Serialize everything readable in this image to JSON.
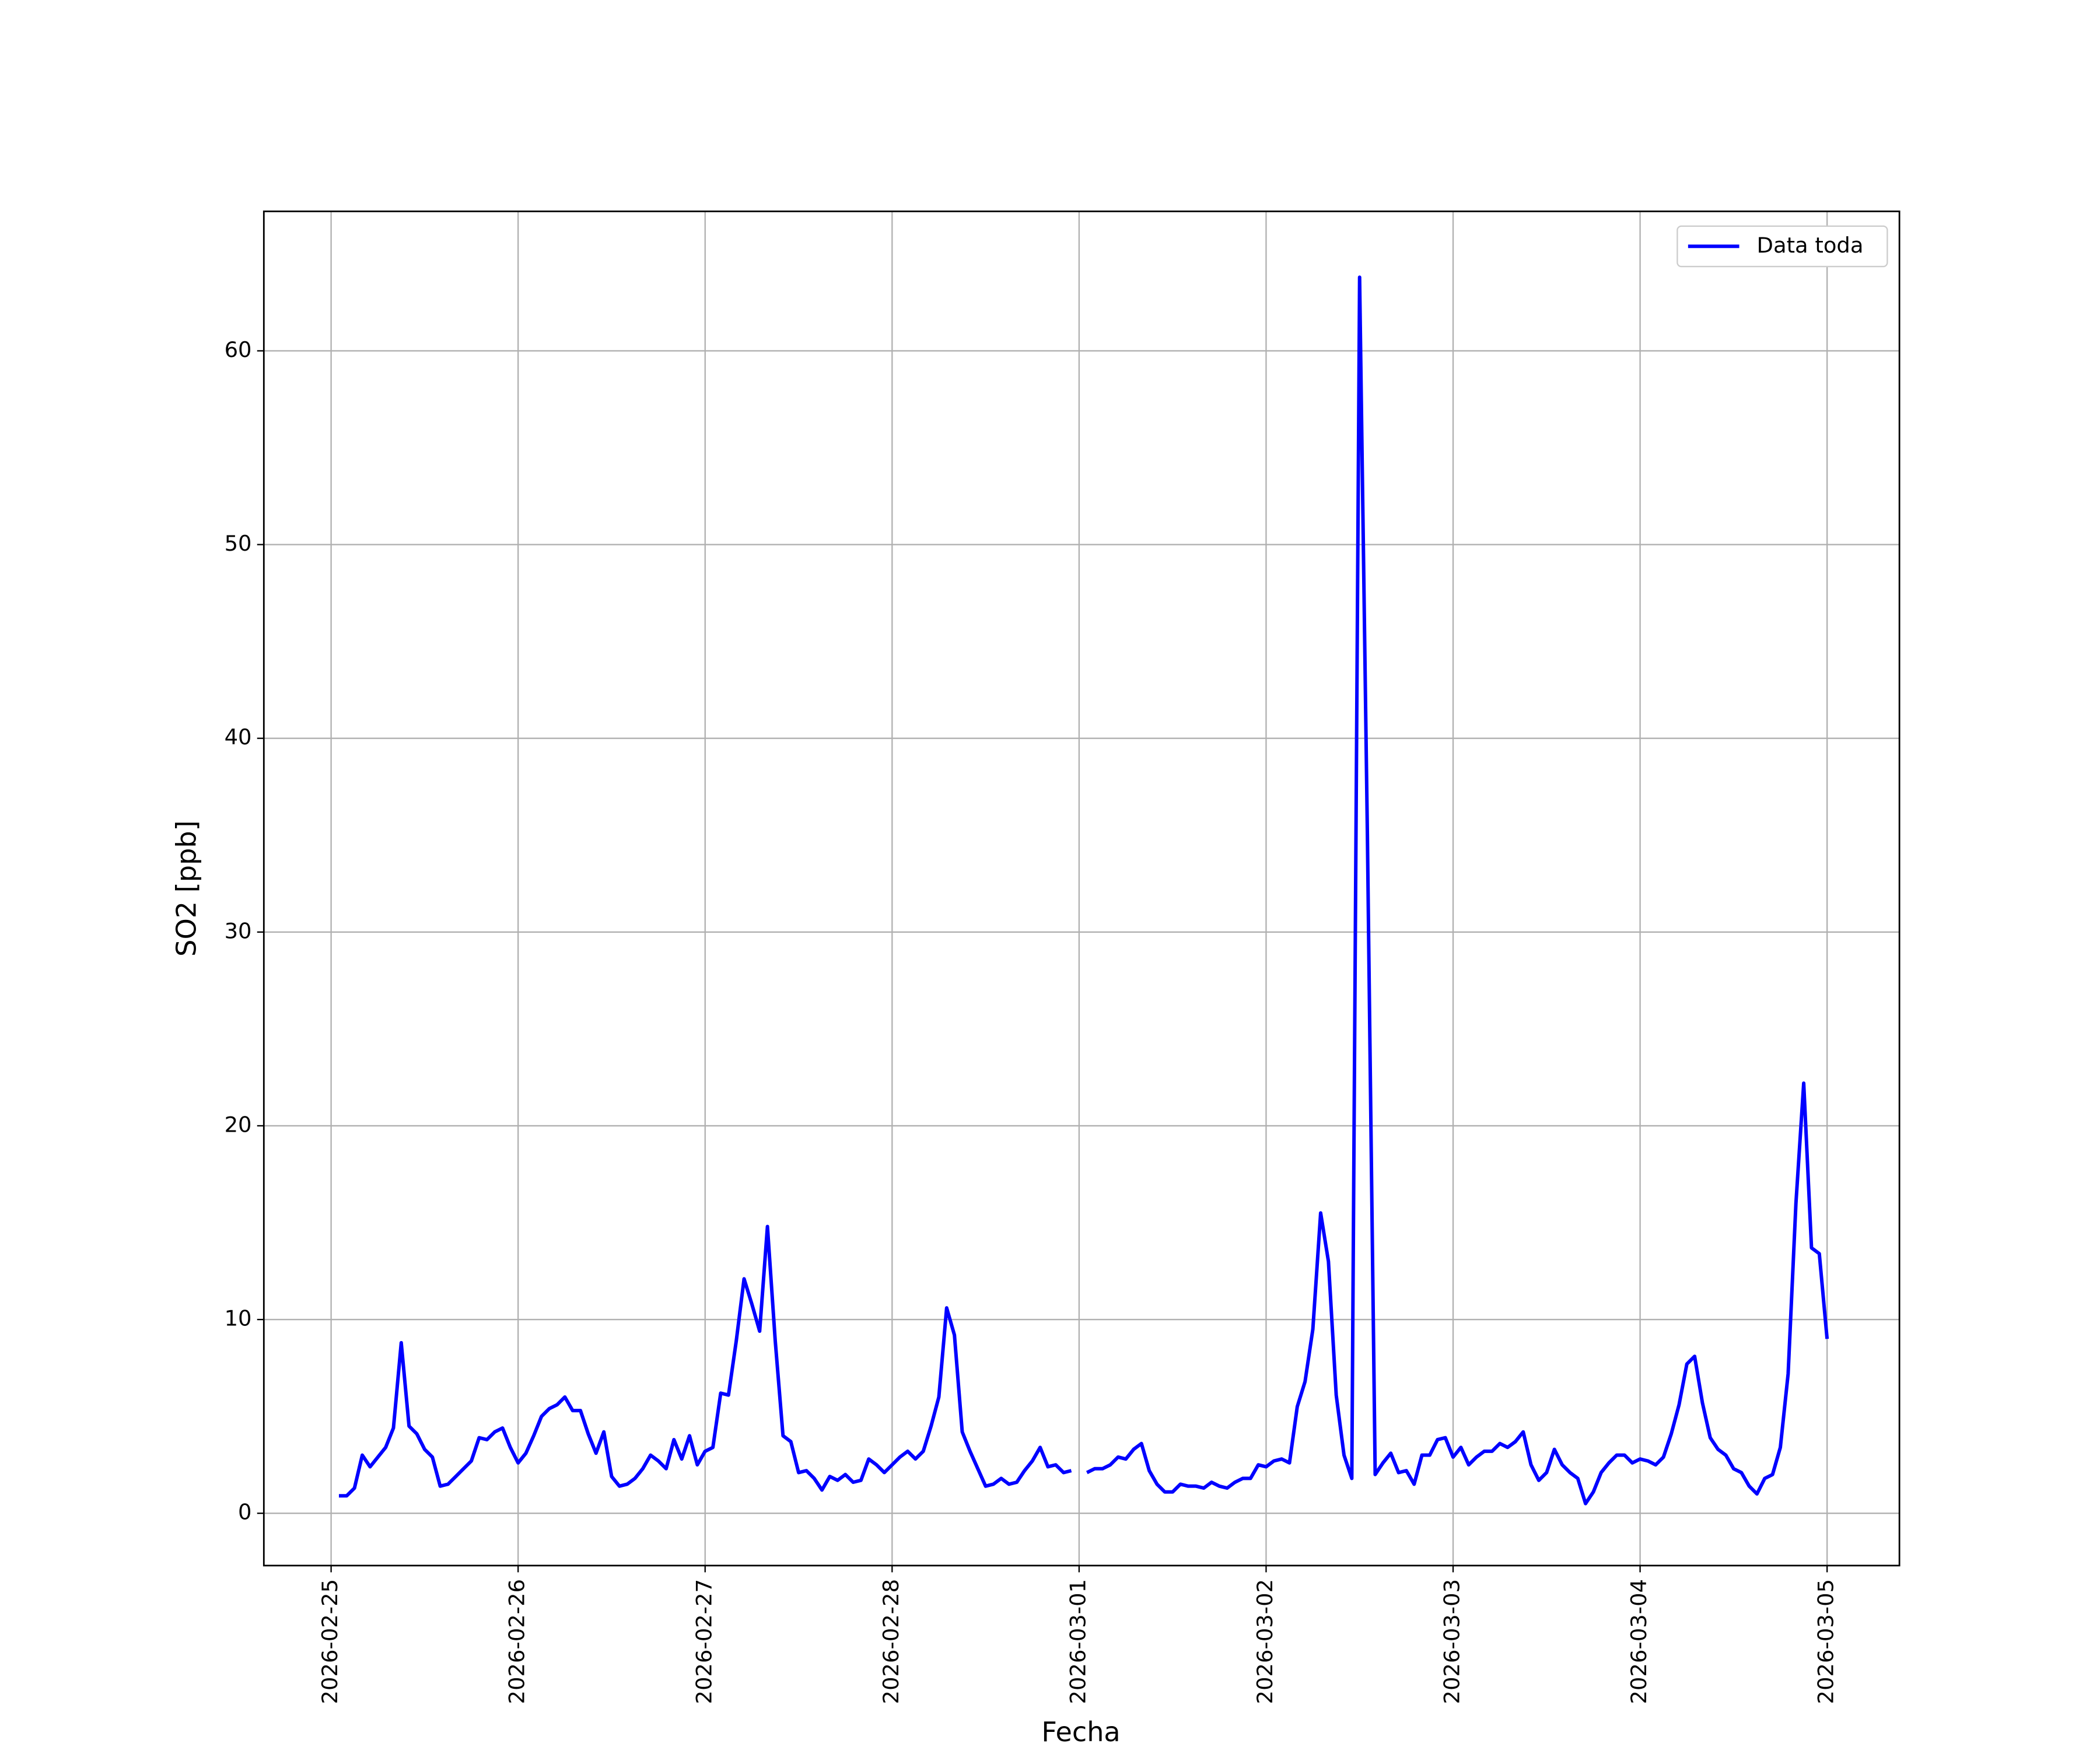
{
  "chart_data": {
    "type": "line",
    "xlabel": "Fecha",
    "ylabel": "SO2 [ppb]",
    "grid": true,
    "legend": "upper right",
    "xlim": [
      "2026-02-24 15:22",
      "2026-03-05 09:17"
    ],
    "ylim": [
      -2.7,
      67.2
    ],
    "xticks": [
      "2026-02-25",
      "2026-02-26",
      "2026-02-27",
      "2026-02-28",
      "2026-03-01",
      "2026-03-02",
      "2026-03-03",
      "2026-03-04",
      "2026-03-05"
    ],
    "yticks": [
      0,
      10,
      20,
      30,
      40,
      50,
      60
    ],
    "x": [
      "2026-02-25 01:00",
      "2026-02-25 02:00",
      "2026-02-25 03:00",
      "2026-02-25 04:00",
      "2026-02-25 05:00",
      "2026-02-25 06:00",
      "2026-02-25 07:00",
      "2026-02-25 08:00",
      "2026-02-25 09:00",
      "2026-02-25 10:00",
      "2026-02-25 11:00",
      "2026-02-25 12:00",
      "2026-02-25 13:00",
      "2026-02-25 14:00",
      "2026-02-25 15:00",
      "2026-02-25 16:00",
      "2026-02-25 17:00",
      "2026-02-25 18:00",
      "2026-02-25 19:00",
      "2026-02-25 20:00",
      "2026-02-25 21:00",
      "2026-02-25 22:00",
      "2026-02-25 23:00",
      "2026-02-26 00:00",
      "2026-02-26 01:00",
      "2026-02-26 02:00",
      "2026-02-26 03:00",
      "2026-02-26 04:00",
      "2026-02-26 05:00",
      "2026-02-26 06:00",
      "2026-02-26 07:00",
      "2026-02-26 08:00",
      "2026-02-26 09:00",
      "2026-02-26 10:00",
      "2026-02-26 11:00",
      "2026-02-26 12:00",
      "2026-02-26 13:00",
      "2026-02-26 14:00",
      "2026-02-26 15:00",
      "2026-02-26 16:00",
      "2026-02-26 17:00",
      "2026-02-26 18:00",
      "2026-02-26 19:00",
      "2026-02-26 20:00",
      "2026-02-26 21:00",
      "2026-02-26 22:00",
      "2026-02-26 23:00",
      "2026-02-27 00:00",
      "2026-02-27 01:00",
      "2026-02-27 02:00",
      "2026-02-27 03:00",
      "2026-02-27 04:00",
      "2026-02-27 05:00",
      "2026-02-27 06:00",
      "2026-02-27 07:00",
      "2026-02-27 08:00",
      "2026-02-27 09:00",
      "2026-02-27 10:00",
      "2026-02-27 11:00",
      "2026-02-27 12:00",
      "2026-02-27 13:00",
      "2026-02-27 14:00",
      "2026-02-27 15:00",
      "2026-02-27 16:00",
      "2026-02-27 17:00",
      "2026-02-27 18:00",
      "2026-02-27 19:00",
      "2026-02-27 20:00",
      "2026-02-27 21:00",
      "2026-02-27 22:00",
      "2026-02-27 23:00",
      "2026-02-28 00:00",
      "2026-02-28 01:00",
      "2026-02-28 02:00",
      "2026-02-28 03:00",
      "2026-02-28 04:00",
      "2026-02-28 05:00",
      "2026-02-28 06:00",
      "2026-02-28 07:00",
      "2026-02-28 08:00",
      "2026-02-28 09:00",
      "2026-02-28 10:00",
      "2026-02-28 11:00",
      "2026-02-28 12:00",
      "2026-02-28 13:00",
      "2026-02-28 14:00",
      "2026-02-28 15:00",
      "2026-02-28 16:00",
      "2026-02-28 17:00",
      "2026-02-28 18:00",
      "2026-02-28 19:00",
      "2026-02-28 20:00",
      "2026-02-28 21:00",
      "2026-02-28 22:00",
      "2026-02-28 23:00",
      "2026-03-01 00:00",
      "2026-03-01 01:00",
      "2026-03-01 02:00",
      "2026-03-01 03:00",
      "2026-03-01 04:00",
      "2026-03-01 05:00",
      "2026-03-01 06:00",
      "2026-03-01 07:00",
      "2026-03-01 08:00",
      "2026-03-01 09:00",
      "2026-03-01 10:00",
      "2026-03-01 11:00",
      "2026-03-01 12:00",
      "2026-03-01 13:00",
      "2026-03-01 14:00",
      "2026-03-01 15:00",
      "2026-03-01 16:00",
      "2026-03-01 17:00",
      "2026-03-01 18:00",
      "2026-03-01 19:00",
      "2026-03-01 20:00",
      "2026-03-01 21:00",
      "2026-03-01 22:00",
      "2026-03-01 23:00",
      "2026-03-02 00:00",
      "2026-03-02 01:00",
      "2026-03-02 02:00",
      "2026-03-02 03:00",
      "2026-03-02 04:00",
      "2026-03-02 05:00",
      "2026-03-02 06:00",
      "2026-03-02 07:00",
      "2026-03-02 08:00",
      "2026-03-02 09:00",
      "2026-03-02 10:00",
      "2026-03-02 11:00",
      "2026-03-02 12:00",
      "2026-03-02 13:00",
      "2026-03-02 14:00",
      "2026-03-02 15:00",
      "2026-03-02 16:00",
      "2026-03-02 17:00",
      "2026-03-02 18:00",
      "2026-03-02 19:00",
      "2026-03-02 20:00",
      "2026-03-02 21:00",
      "2026-03-02 22:00",
      "2026-03-02 23:00",
      "2026-03-03 00:00",
      "2026-03-03 01:00",
      "2026-03-03 02:00",
      "2026-03-03 03:00",
      "2026-03-03 04:00",
      "2026-03-03 05:00",
      "2026-03-03 06:00",
      "2026-03-03 07:00",
      "2026-03-03 08:00",
      "2026-03-03 09:00",
      "2026-03-03 10:00",
      "2026-03-03 11:00",
      "2026-03-03 12:00",
      "2026-03-03 13:00",
      "2026-03-03 14:00",
      "2026-03-03 15:00",
      "2026-03-03 16:00",
      "2026-03-03 17:00",
      "2026-03-03 18:00",
      "2026-03-03 19:00",
      "2026-03-03 20:00",
      "2026-03-03 21:00",
      "2026-03-03 22:00",
      "2026-03-03 23:00",
      "2026-03-04 00:00",
      "2026-03-04 01:00",
      "2026-03-04 02:00",
      "2026-03-04 03:00",
      "2026-03-04 04:00",
      "2026-03-04 05:00",
      "2026-03-04 06:00",
      "2026-03-04 07:00",
      "2026-03-04 08:00",
      "2026-03-04 09:00",
      "2026-03-04 10:00",
      "2026-03-04 11:00",
      "2026-03-04 12:00",
      "2026-03-04 13:00",
      "2026-03-04 14:00",
      "2026-03-04 15:00",
      "2026-03-04 16:00",
      "2026-03-04 17:00",
      "2026-03-04 18:00",
      "2026-03-04 19:00",
      "2026-03-04 20:00",
      "2026-03-04 21:00",
      "2026-03-04 22:00",
      "2026-03-04 23:00",
      "2026-03-05 00:00"
    ],
    "series": [
      {
        "name": "Data toda",
        "color": "#0000ff",
        "values": [
          0.9,
          0.9,
          1.3,
          3.0,
          2.4,
          2.9,
          3.4,
          4.4,
          8.8,
          4.5,
          4.1,
          3.3,
          2.9,
          1.4,
          1.5,
          1.9,
          2.3,
          2.7,
          3.9,
          3.8,
          4.2,
          4.4,
          3.4,
          2.6,
          3.1,
          4.0,
          5.0,
          5.4,
          5.6,
          6.0,
          5.3,
          5.3,
          4.1,
          3.1,
          4.2,
          1.9,
          1.4,
          1.5,
          1.8,
          2.3,
          3.0,
          2.7,
          2.3,
          3.8,
          2.8,
          4.0,
          2.5,
          3.2,
          3.4,
          6.2,
          6.1,
          8.9,
          12.1,
          10.8,
          9.4,
          14.8,
          8.9,
          4.0,
          3.7,
          2.1,
          2.2,
          1.8,
          1.2,
          1.9,
          1.7,
          2.0,
          1.6,
          1.7,
          2.8,
          2.5,
          2.1,
          2.5,
          2.9,
          3.2,
          2.8,
          3.2,
          4.5,
          6.0,
          10.6,
          9.2,
          4.2,
          3.2,
          2.3,
          1.4,
          1.5,
          1.8,
          1.5,
          1.6,
          2.2,
          2.7,
          3.4,
          2.4,
          2.5,
          2.1,
          2.2,
          null,
          2.1,
          2.3,
          2.3,
          2.5,
          2.9,
          2.8,
          3.3,
          3.6,
          2.2,
          1.5,
          1.1,
          1.1,
          1.5,
          1.4,
          1.4,
          1.3,
          1.6,
          1.4,
          1.3,
          1.6,
          1.8,
          1.8,
          2.5,
          2.4,
          2.7,
          2.8,
          2.6,
          5.5,
          6.8,
          9.5,
          15.5,
          13.0,
          6.1,
          3.0,
          1.8,
          63.8,
          35.0,
          2.0,
          2.6,
          3.1,
          2.1,
          2.2,
          1.5,
          3.0,
          3.0,
          3.8,
          3.9,
          2.9,
          3.4,
          2.5,
          2.9,
          3.2,
          3.2,
          3.6,
          3.4,
          3.7,
          4.2,
          2.5,
          1.7,
          2.1,
          3.3,
          2.5,
          2.1,
          1.8,
          0.5,
          1.1,
          2.1,
          2.6,
          3.0,
          3.0,
          2.6,
          2.8,
          2.7,
          2.5,
          2.9,
          4.1,
          5.6,
          7.7,
          8.1,
          5.7,
          3.9,
          3.3,
          3.0,
          2.3,
          2.1,
          1.4,
          1.0,
          1.8,
          2.0,
          3.4,
          7.2,
          16.0,
          22.2,
          13.7,
          13.4,
          9.0
        ]
      }
    ]
  }
}
